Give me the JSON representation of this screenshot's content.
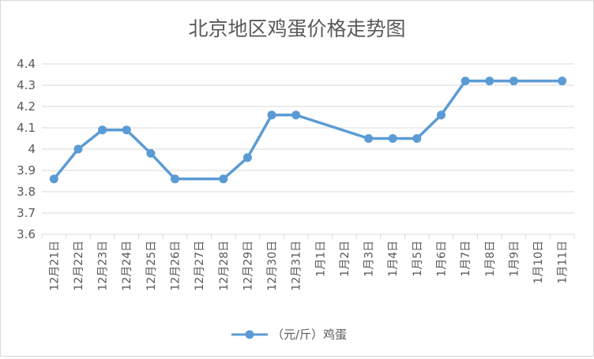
{
  "chart_data": {
    "type": "line",
    "title": "北京地区鸡蛋价格走势图",
    "categories": [
      "12月21日",
      "12月22日",
      "12月23日",
      "12月24日",
      "12月25日",
      "12月26日",
      "12月27日",
      "12月28日",
      "12月29日",
      "12月30日",
      "12月31日",
      "1月1日",
      "1月2日",
      "1月3日",
      "1月4日",
      "1月5日",
      "1月6日",
      "1月7日",
      "1月8日",
      "1月9日",
      "1月10日",
      "1月11日"
    ],
    "series": [
      {
        "name": "（元/斤）鸡蛋",
        "color": "#5b9bd5",
        "values": [
          3.86,
          4.0,
          4.09,
          4.09,
          3.98,
          3.86,
          null,
          3.86,
          3.96,
          4.16,
          4.16,
          null,
          null,
          4.05,
          4.05,
          4.05,
          4.16,
          4.32,
          4.32,
          4.32,
          null,
          4.32
        ]
      }
    ],
    "yticks": [
      "4.4",
      "4.3",
      "4.2",
      "4.1",
      "4",
      "3.9",
      "3.8",
      "3.7",
      "3.6"
    ],
    "ylim": [
      3.6,
      4.4
    ],
    "grid": true,
    "legend": "bottom"
  }
}
